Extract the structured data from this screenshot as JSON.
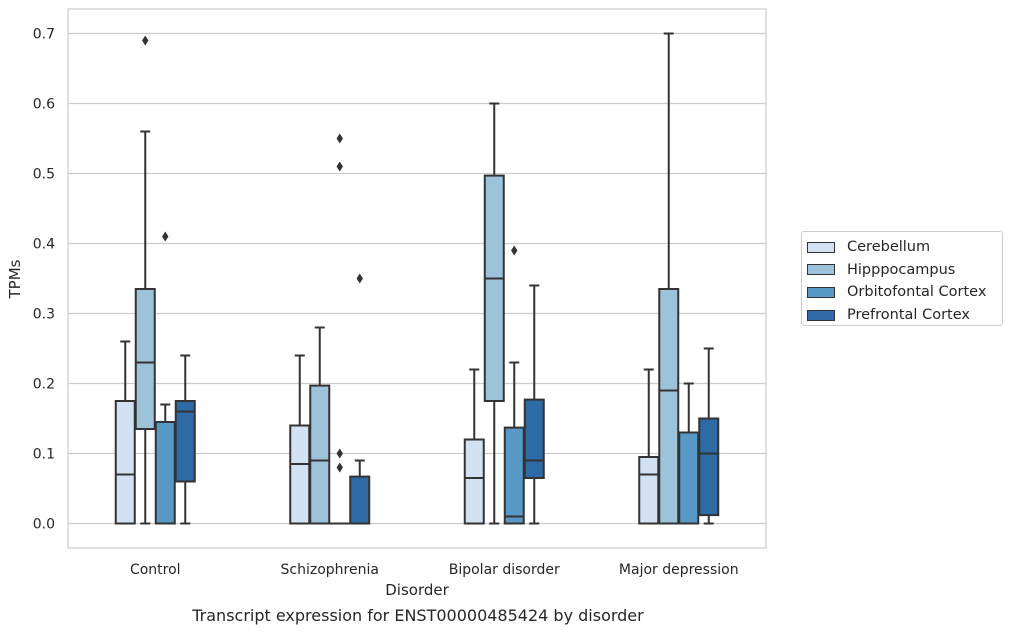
{
  "chart_data": {
    "type": "boxplot",
    "title": "",
    "caption": "Transcript expression for ENST00000485424 by disorder",
    "xlabel": "Disorder",
    "ylabel": "TPMs",
    "ylim": [
      -0.035,
      0.735
    ],
    "yticks": [
      0.0,
      0.1,
      0.2,
      0.3,
      0.4,
      0.5,
      0.6,
      0.7
    ],
    "ytick_labels": [
      "0.0",
      "0.1",
      "0.2",
      "0.3",
      "0.4",
      "0.5",
      "0.6",
      "0.7"
    ],
    "grid": true,
    "legend_position": "right",
    "categories": [
      "Control",
      "Schizophrenia",
      "Bipolar disorder",
      "Major depression"
    ],
    "series": [
      {
        "name": "Cerebellum",
        "color": "#d3e2f2",
        "boxes": [
          {
            "whislo": 0.0,
            "q1": 0.0,
            "med": 0.07,
            "q3": 0.175,
            "whishi": 0.26,
            "fliers": []
          },
          {
            "whislo": 0.0,
            "q1": 0.0,
            "med": 0.085,
            "q3": 0.14,
            "whishi": 0.24,
            "fliers": []
          },
          {
            "whislo": 0.0,
            "q1": 0.0,
            "med": 0.065,
            "q3": 0.12,
            "whishi": 0.22,
            "fliers": []
          },
          {
            "whislo": 0.0,
            "q1": 0.0,
            "med": 0.07,
            "q3": 0.095,
            "whishi": 0.22,
            "fliers": []
          }
        ]
      },
      {
        "name": "Hipppocampus",
        "color": "#9cc3da",
        "boxes": [
          {
            "whislo": 0.0,
            "q1": 0.135,
            "med": 0.23,
            "q3": 0.335,
            "whishi": 0.56,
            "fliers": [
              0.69
            ]
          },
          {
            "whislo": 0.0,
            "q1": 0.0,
            "med": 0.09,
            "q3": 0.197,
            "whishi": 0.28,
            "fliers": []
          },
          {
            "whislo": 0.0,
            "q1": 0.175,
            "med": 0.35,
            "q3": 0.497,
            "whishi": 0.6,
            "fliers": []
          },
          {
            "whislo": 0.0,
            "q1": 0.0,
            "med": 0.19,
            "q3": 0.335,
            "whishi": 0.7,
            "fliers": []
          }
        ]
      },
      {
        "name": "Orbitofontal Cortex",
        "color": "#5898c4",
        "boxes": [
          {
            "whislo": 0.0,
            "q1": 0.0,
            "med": 0.0,
            "q3": 0.145,
            "whishi": 0.17,
            "fliers": [
              0.41
            ]
          },
          {
            "whislo": 0.0,
            "q1": 0.0,
            "med": 0.0,
            "q3": 0.0,
            "whishi": 0.0,
            "fliers": [
              0.08,
              0.1,
              0.51,
              0.55
            ]
          },
          {
            "whislo": 0.0,
            "q1": 0.0,
            "med": 0.01,
            "q3": 0.137,
            "whishi": 0.23,
            "fliers": [
              0.39
            ]
          },
          {
            "whislo": 0.0,
            "q1": 0.0,
            "med": 0.0,
            "q3": 0.13,
            "whishi": 0.2,
            "fliers": []
          }
        ]
      },
      {
        "name": "Prefrontal Cortex",
        "color": "#2d6aa6",
        "boxes": [
          {
            "whislo": 0.0,
            "q1": 0.06,
            "med": 0.16,
            "q3": 0.175,
            "whishi": 0.24,
            "fliers": []
          },
          {
            "whislo": 0.0,
            "q1": 0.0,
            "med": 0.0,
            "q3": 0.067,
            "whishi": 0.09,
            "fliers": [
              0.35
            ]
          },
          {
            "whislo": 0.0,
            "q1": 0.065,
            "med": 0.09,
            "q3": 0.177,
            "whishi": 0.34,
            "fliers": []
          },
          {
            "whislo": 0.0,
            "q1": 0.012,
            "med": 0.1,
            "q3": 0.15,
            "whishi": 0.25,
            "fliers": []
          }
        ]
      }
    ]
  }
}
